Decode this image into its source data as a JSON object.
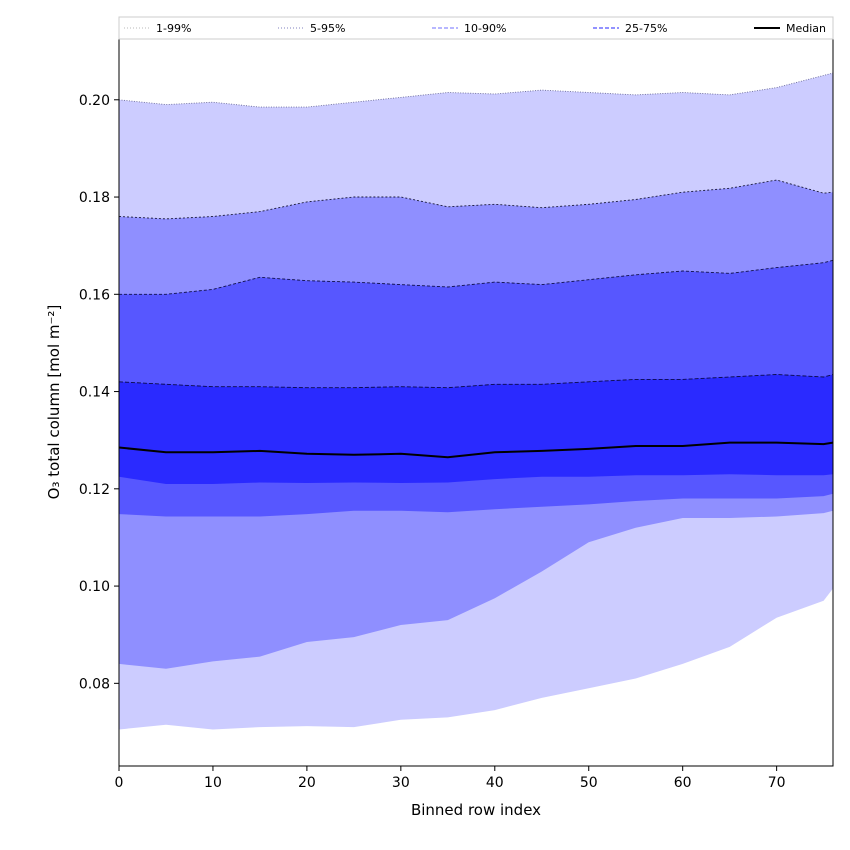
{
  "chart_data": {
    "type": "area",
    "title": "",
    "xlabel": "Binned row index",
    "ylabel": "O₃ total column [mol m⁻²]",
    "xlim": [
      0,
      76
    ],
    "ylim": [
      0.063,
      0.2125
    ],
    "xticks": [
      0,
      10,
      20,
      30,
      40,
      50,
      60,
      70
    ],
    "yticks": [
      0.08,
      0.1,
      0.12,
      0.14,
      0.16,
      0.18,
      0.2
    ],
    "ytick_labels": [
      "0.08",
      "0.10",
      "0.12",
      "0.14",
      "0.16",
      "0.18",
      "0.20"
    ],
    "legend_position": "top",
    "colors": {
      "band_1_99": "#ccccff",
      "band_5_95": "#8f8fff",
      "band_10_90": "#5757ff",
      "band_25_75": "#2a2aff",
      "median": "#000000"
    },
    "legend": [
      {
        "label": "1-99%",
        "style": "dotted",
        "color": "#c8c8c8"
      },
      {
        "label": "5-95%",
        "style": "dotted",
        "color": "#9a9acc"
      },
      {
        "label": "10-90%",
        "style": "dashed",
        "color": "#8c8cff"
      },
      {
        "label": "25-75%",
        "style": "dashed",
        "color": "#5050ff"
      },
      {
        "label": "Median",
        "style": "solid",
        "color": "#000000"
      }
    ],
    "x": [
      0,
      5,
      10,
      15,
      20,
      25,
      30,
      35,
      40,
      45,
      50,
      55,
      60,
      65,
      70,
      75,
      76
    ],
    "series": [
      {
        "name": "p1",
        "values": [
          0.0705,
          0.0715,
          0.0705,
          0.071,
          0.0712,
          0.071,
          0.0725,
          0.073,
          0.0745,
          0.077,
          0.079,
          0.081,
          0.084,
          0.0875,
          0.0935,
          0.097,
          0.0995
        ]
      },
      {
        "name": "p5",
        "values": [
          0.084,
          0.083,
          0.0845,
          0.0855,
          0.0885,
          0.0895,
          0.092,
          0.093,
          0.0975,
          0.103,
          0.109,
          0.112,
          0.114,
          0.114,
          0.1143,
          0.115,
          0.1155
        ]
      },
      {
        "name": "p10",
        "values": [
          0.1148,
          0.1143,
          0.1143,
          0.1143,
          0.1148,
          0.1155,
          0.1155,
          0.1152,
          0.1158,
          0.1163,
          0.1168,
          0.1175,
          0.118,
          0.118,
          0.118,
          0.1185,
          0.119
        ]
      },
      {
        "name": "p25",
        "values": [
          0.1225,
          0.121,
          0.121,
          0.1213,
          0.1212,
          0.1213,
          0.1212,
          0.1213,
          0.122,
          0.1225,
          0.1225,
          0.1228,
          0.1228,
          0.123,
          0.1228,
          0.1228,
          0.123
        ]
      },
      {
        "name": "Median",
        "values": [
          0.1285,
          0.1275,
          0.1275,
          0.1278,
          0.1272,
          0.127,
          0.1272,
          0.1265,
          0.1275,
          0.1278,
          0.1282,
          0.1288,
          0.1288,
          0.1295,
          0.1295,
          0.1292,
          0.1295
        ]
      },
      {
        "name": "p75",
        "values": [
          0.142,
          0.1415,
          0.141,
          0.141,
          0.1408,
          0.1408,
          0.141,
          0.1408,
          0.1415,
          0.1415,
          0.142,
          0.1425,
          0.1425,
          0.143,
          0.1435,
          0.143,
          0.1435
        ]
      },
      {
        "name": "p90",
        "values": [
          0.16,
          0.16,
          0.161,
          0.1635,
          0.1628,
          0.1625,
          0.162,
          0.1615,
          0.1625,
          0.162,
          0.163,
          0.164,
          0.1648,
          0.1643,
          0.1655,
          0.1665,
          0.167
        ]
      },
      {
        "name": "p95",
        "values": [
          0.176,
          0.1755,
          0.176,
          0.177,
          0.179,
          0.18,
          0.18,
          0.178,
          0.1785,
          0.1778,
          0.1785,
          0.1795,
          0.181,
          0.1818,
          0.1835,
          0.1808,
          0.181
        ]
      },
      {
        "name": "p99",
        "values": [
          0.2,
          0.199,
          0.1995,
          0.1985,
          0.1985,
          0.1995,
          0.2005,
          0.2015,
          0.2012,
          0.202,
          0.2015,
          0.201,
          0.2015,
          0.201,
          0.2025,
          0.205,
          0.2055
        ]
      }
    ]
  }
}
